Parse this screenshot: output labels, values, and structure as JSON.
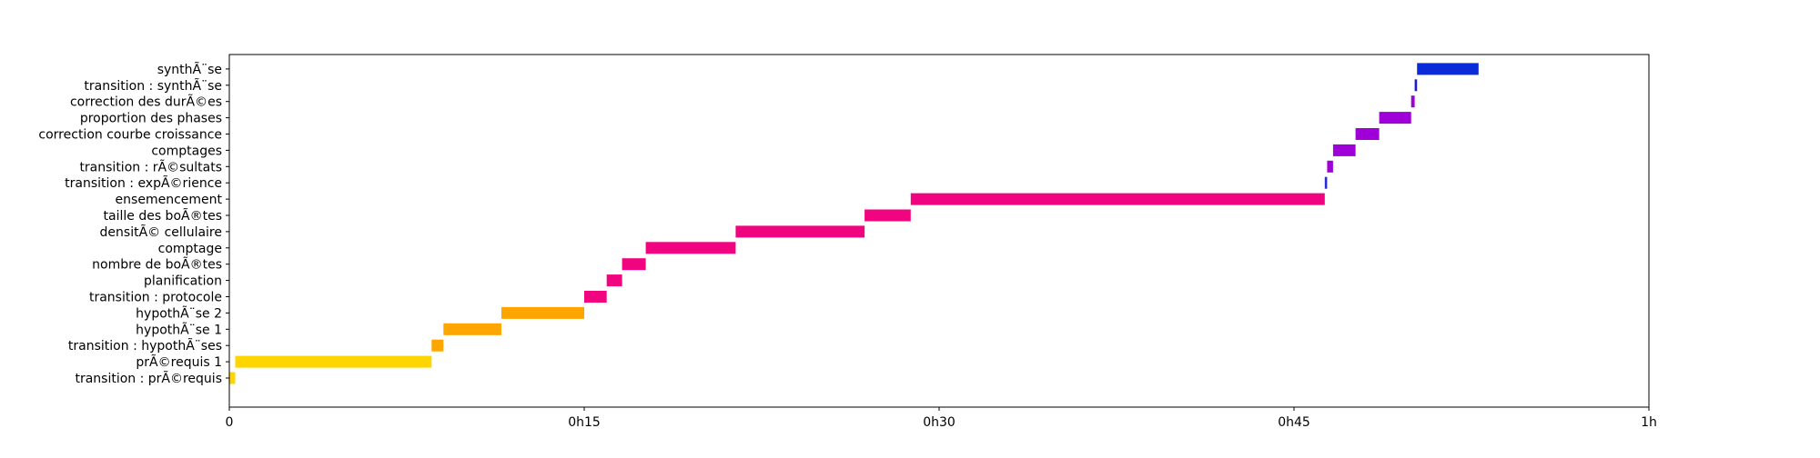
{
  "chart_data": {
    "type": "bar",
    "orientation": "horizontal",
    "x_unit": "minutes",
    "x_range": [
      0,
      60
    ],
    "x_ticks": [
      {
        "value": 0,
        "label": "0"
      },
      {
        "value": 15,
        "label": "0h15"
      },
      {
        "value": 30,
        "label": "0h30"
      },
      {
        "value": 45,
        "label": "0h45"
      },
      {
        "value": 60,
        "label": "1h"
      }
    ],
    "grid": false,
    "legend": "none",
    "categories": [
      "transition : prÃ©requis",
      "prÃ©requis 1",
      "transition : hypothÃ¨ses",
      "hypothÃ¨se 1",
      "hypothÃ¨se 2",
      "transition : protocole",
      "planification",
      "nombre de boÃ®tes",
      "comptage",
      "densitÃ© cellulaire",
      "taille des boÃ®tes",
      "ensemencement",
      "transition : expÃ©rience",
      "transition : rÃ©sultats",
      "comptages",
      "correction courbe croissance",
      "proportion des phases",
      "correction des durÃ©es",
      "transition : synthÃ¨se",
      "synthÃ¨se"
    ],
    "tasks": [
      {
        "start": 0.0,
        "end": 0.25,
        "color": "#ffd500"
      },
      {
        "start": 0.25,
        "end": 8.55,
        "color": "#ffd500"
      },
      {
        "start": 8.55,
        "end": 9.05,
        "color": "#ffa500"
      },
      {
        "start": 9.05,
        "end": 11.5,
        "color": "#ffa500"
      },
      {
        "start": 11.5,
        "end": 15.0,
        "color": "#ffa500"
      },
      {
        "start": 15.0,
        "end": 15.95,
        "color": "#f0047f"
      },
      {
        "start": 15.95,
        "end": 16.6,
        "color": "#f0047f"
      },
      {
        "start": 16.6,
        "end": 17.6,
        "color": "#f0047f"
      },
      {
        "start": 17.6,
        "end": 21.4,
        "color": "#f0047f"
      },
      {
        "start": 21.4,
        "end": 26.85,
        "color": "#f0047f"
      },
      {
        "start": 26.85,
        "end": 28.8,
        "color": "#f0047f"
      },
      {
        "start": 28.8,
        "end": 46.3,
        "color": "#f0047f"
      },
      {
        "start": 46.3,
        "end": 46.4,
        "color": "#2a2bd8"
      },
      {
        "start": 46.4,
        "end": 46.65,
        "color": "#a000d8"
      },
      {
        "start": 46.65,
        "end": 47.6,
        "color": "#a000d8"
      },
      {
        "start": 47.6,
        "end": 48.6,
        "color": "#a000d8"
      },
      {
        "start": 48.6,
        "end": 49.95,
        "color": "#a000d8"
      },
      {
        "start": 49.95,
        "end": 50.1,
        "color": "#a000d8"
      },
      {
        "start": 50.1,
        "end": 50.2,
        "color": "#1a1ad8"
      },
      {
        "start": 50.2,
        "end": 52.8,
        "color": "#0a2cd8"
      }
    ]
  }
}
